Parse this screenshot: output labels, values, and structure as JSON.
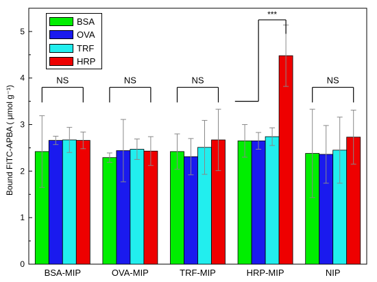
{
  "chart_data": {
    "type": "bar",
    "categories": [
      "BSA-MIP",
      "OVA-MIP",
      "TRF-MIP",
      "HRP-MIP",
      "NIP"
    ],
    "series": [
      {
        "name": "BSA",
        "color": "#00ee00",
        "values": [
          2.42,
          2.29,
          2.42,
          2.65,
          2.38
        ],
        "errors": [
          0.77,
          0.1,
          0.38,
          0.35,
          0.95
        ]
      },
      {
        "name": "OVA",
        "color": "#1a1aee",
        "values": [
          2.66,
          2.44,
          2.31,
          2.65,
          2.36
        ],
        "errors": [
          0.09,
          0.67,
          0.39,
          0.18,
          0.62
        ]
      },
      {
        "name": "TRF",
        "color": "#22eeee",
        "values": [
          2.67,
          2.47,
          2.51,
          2.74,
          2.45
        ],
        "errors": [
          0.27,
          0.22,
          0.58,
          0.19,
          0.71
        ]
      },
      {
        "name": "HRP",
        "color": "#ee0000",
        "values": [
          2.66,
          2.43,
          2.67,
          4.48,
          2.73
        ],
        "errors": [
          0.18,
          0.31,
          0.66,
          0.66,
          0.58
        ]
      }
    ],
    "ylabel": "Bound FITC-APBA ( μmol g⁻¹)",
    "xlabel": "",
    "ylim": [
      0,
      5.5
    ],
    "yticks": [
      0,
      1,
      2,
      3,
      4,
      5
    ],
    "annotations": [
      "NS",
      "NS",
      "NS",
      "***",
      "NS"
    ],
    "grid": false,
    "legend": "top-left"
  }
}
